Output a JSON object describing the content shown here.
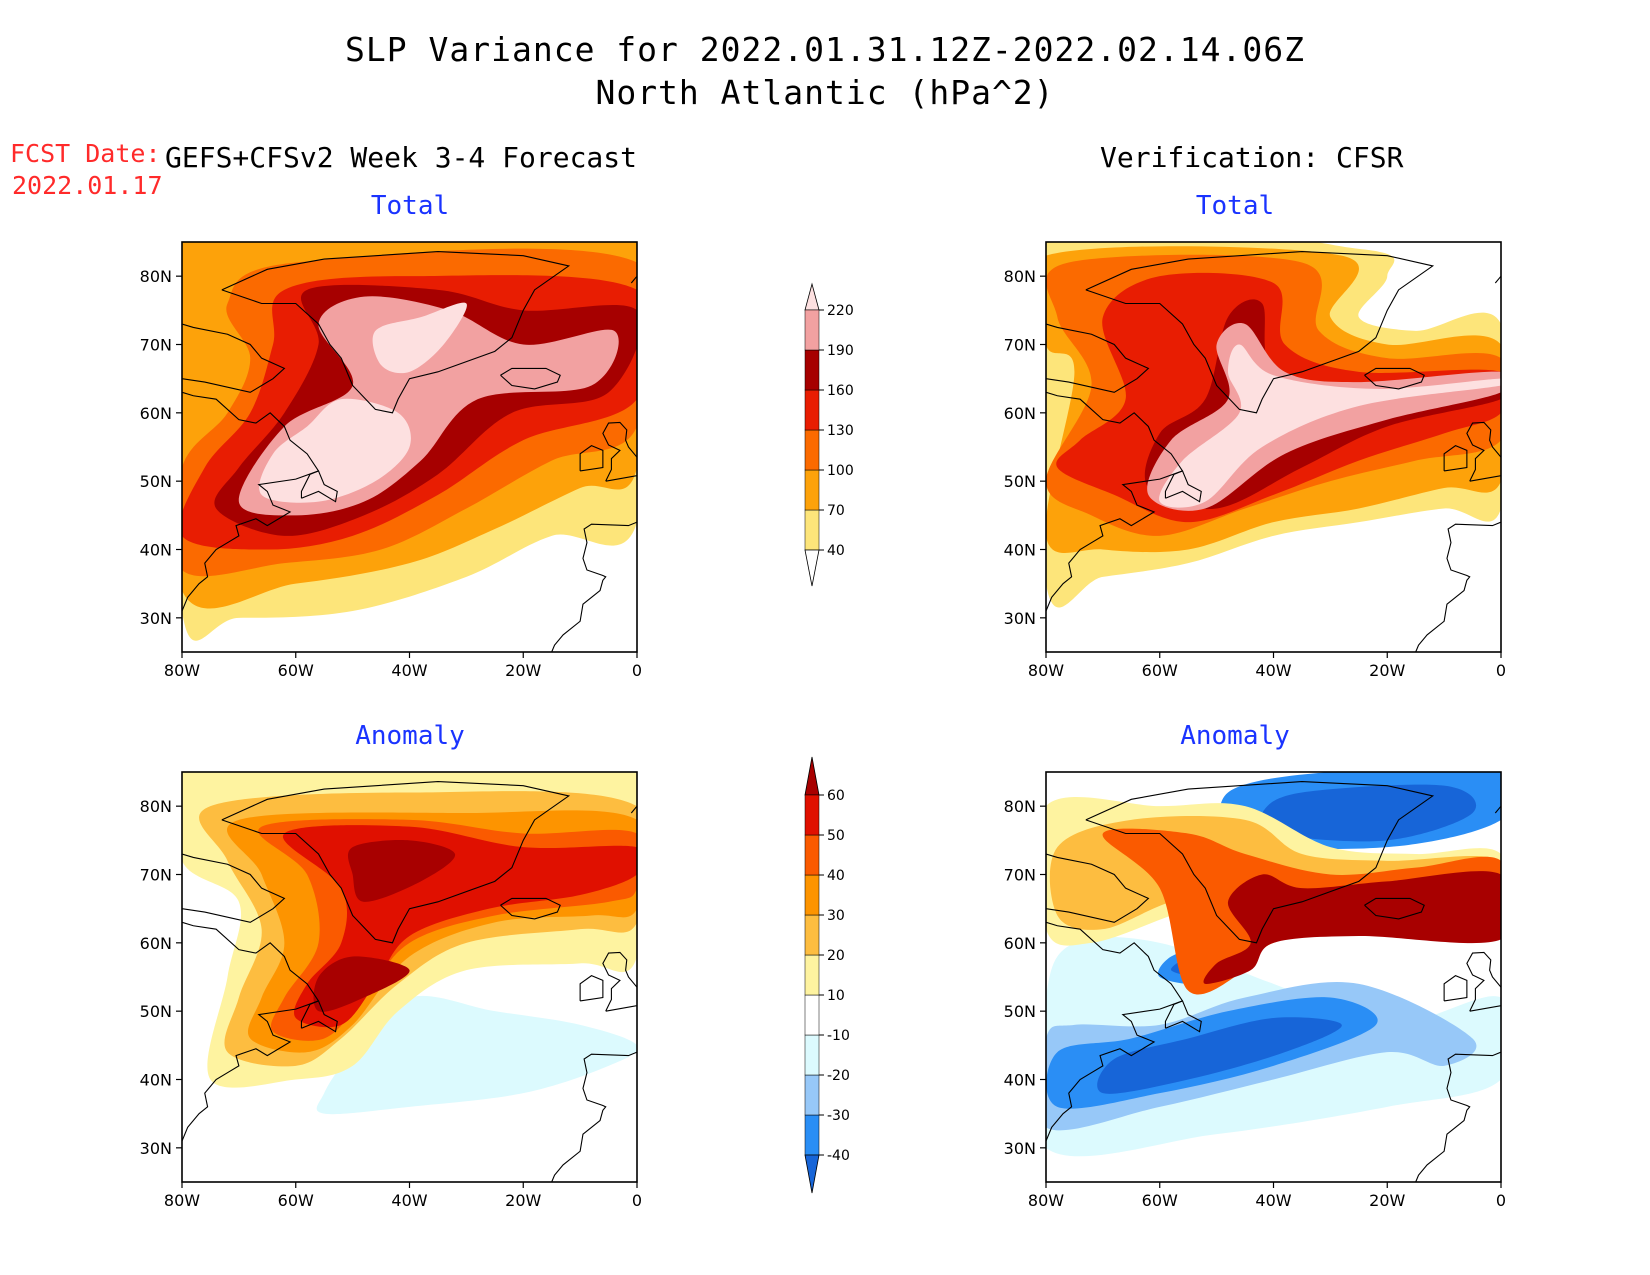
{
  "title": {
    "line1": "SLP Variance for 2022.01.31.12Z-2022.02.14.06Z",
    "line2": "North Atlantic (hPa^2)"
  },
  "forecast_date": {
    "label": "FCST Date:",
    "value": "2022.01.17"
  },
  "left_header": "GEFS+CFSv2 Week 3-4 Forecast",
  "right_header": "Verification: CFSR",
  "panels": {
    "tl": {
      "label": "Total"
    },
    "tr": {
      "label": "Total"
    },
    "bl": {
      "label": "Anomaly"
    },
    "br": {
      "label": "Anomaly"
    }
  },
  "axes": {
    "lon_ticks": [
      "80W",
      "60W",
      "40W",
      "20W",
      "0"
    ],
    "lat_ticks": [
      "80N",
      "70N",
      "60N",
      "50N",
      "40N",
      "30N"
    ]
  },
  "colorbars": {
    "total": {
      "levels": [
        "40",
        "70",
        "100",
        "130",
        "160",
        "190",
        "220"
      ],
      "colors": [
        "#fde57a",
        "#fda20a",
        "#fb6a00",
        "#e81d02",
        "#a60000",
        "#f2a1a1",
        "#fde0e0"
      ]
    },
    "anomaly": {
      "levels": [
        "-40",
        "-30",
        "-20",
        "-10",
        "10",
        "20",
        "30",
        "40",
        "50",
        "60"
      ],
      "colors": [
        "#1765d8",
        "#2a8ef5",
        "#97c8f8",
        "#dcfafe",
        "#ffffff",
        "#fef3a0",
        "#fdbd40",
        "#fd9400",
        "#fa5a00",
        "#e01000",
        "#a80000"
      ]
    }
  },
  "field_colors": {
    "coast": "#000000",
    "land_outline": "#111111"
  }
}
